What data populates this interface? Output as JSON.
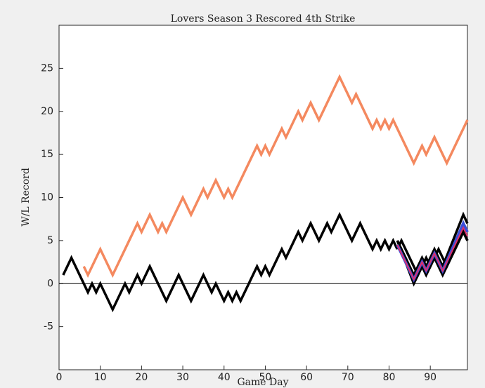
{
  "chart_data": {
    "type": "line",
    "title": "Lovers Season 3 Rescored 4th Strike",
    "xlabel": "Game Day",
    "ylabel": "W/L Record",
    "xlim": [
      0,
      99
    ],
    "ylim": [
      -10,
      30
    ],
    "xticks": [
      0,
      10,
      20,
      30,
      40,
      50,
      60,
      70,
      80,
      90
    ],
    "yticks": [
      -5,
      0,
      5,
      10,
      15,
      20,
      25
    ],
    "zero_line": 0,
    "series": [
      {
        "color": "#f4895f",
        "width": 3.5,
        "x": [
          6,
          7,
          10,
          13,
          19,
          20,
          22,
          24,
          25,
          26,
          30,
          32,
          35,
          36,
          38,
          40,
          41,
          42,
          48,
          49,
          50,
          51,
          54,
          55,
          58,
          59,
          61,
          63,
          68,
          71,
          72,
          76,
          77,
          78,
          79,
          80,
          81,
          86,
          88,
          89,
          91,
          94,
          99
        ],
        "values": [
          2,
          1,
          4,
          1,
          7,
          6,
          8,
          6,
          7,
          6,
          10,
          8,
          11,
          10,
          12,
          10,
          11,
          10,
          16,
          15,
          16,
          15,
          18,
          17,
          20,
          19,
          21,
          19,
          24,
          21,
          22,
          18,
          19,
          18,
          19,
          18,
          19,
          14,
          16,
          15,
          17,
          14,
          19
        ]
      },
      {
        "color": "#000000",
        "width": 3.5,
        "x": [
          1,
          3,
          7,
          8,
          9,
          10,
          13,
          16,
          17,
          19,
          20,
          22,
          26,
          29,
          32,
          35,
          37,
          38,
          40,
          41,
          42,
          43,
          44,
          48,
          49,
          50,
          51,
          54,
          55,
          58,
          59,
          61,
          63,
          65,
          66,
          68,
          71,
          73,
          76,
          77,
          78,
          79,
          80,
          81,
          82
        ],
        "values": [
          1,
          3,
          -1,
          0,
          -1,
          0,
          -3,
          0,
          -1,
          1,
          0,
          2,
          -2,
          1,
          -2,
          1,
          -1,
          0,
          -2,
          -1,
          -2,
          -1,
          -2,
          2,
          1,
          2,
          1,
          4,
          3,
          6,
          5,
          7,
          5,
          7,
          6,
          8,
          5,
          7,
          4,
          5,
          4,
          5,
          4,
          5,
          4
        ]
      },
      {
        "color": "#000000",
        "width": 3.5,
        "x": [
          82,
          83,
          87,
          89,
          90,
          92,
          94,
          98,
          99
        ],
        "values": [
          4,
          5,
          1,
          3,
          2,
          4,
          2,
          6,
          5
        ]
      },
      {
        "color": "#000000",
        "width": 3.5,
        "x": [
          82,
          86,
          88,
          89,
          91,
          93,
          98,
          99
        ],
        "values": [
          5,
          0,
          2,
          1,
          3,
          1,
          6,
          5
        ]
      },
      {
        "color": "#000000",
        "width": 3.5,
        "x": [
          82,
          86,
          88,
          89,
          91,
          93,
          98,
          99
        ],
        "values": [
          5,
          1,
          3,
          2,
          4,
          2,
          8,
          7
        ]
      },
      {
        "color": "#3a4fd8",
        "width": 4,
        "x": [
          82,
          86,
          88,
          89,
          91,
          93,
          98,
          99
        ],
        "values": [
          4.5,
          0.5,
          2.5,
          1.5,
          3.5,
          1.5,
          7,
          6
        ]
      },
      {
        "color": "#e0306a",
        "width": 2,
        "x": [
          82,
          86,
          88,
          89,
          91,
          93,
          98,
          99
        ],
        "values": [
          4.5,
          0.5,
          2.5,
          1.5,
          3.5,
          1.5,
          6.5,
          5.5
        ]
      }
    ]
  }
}
